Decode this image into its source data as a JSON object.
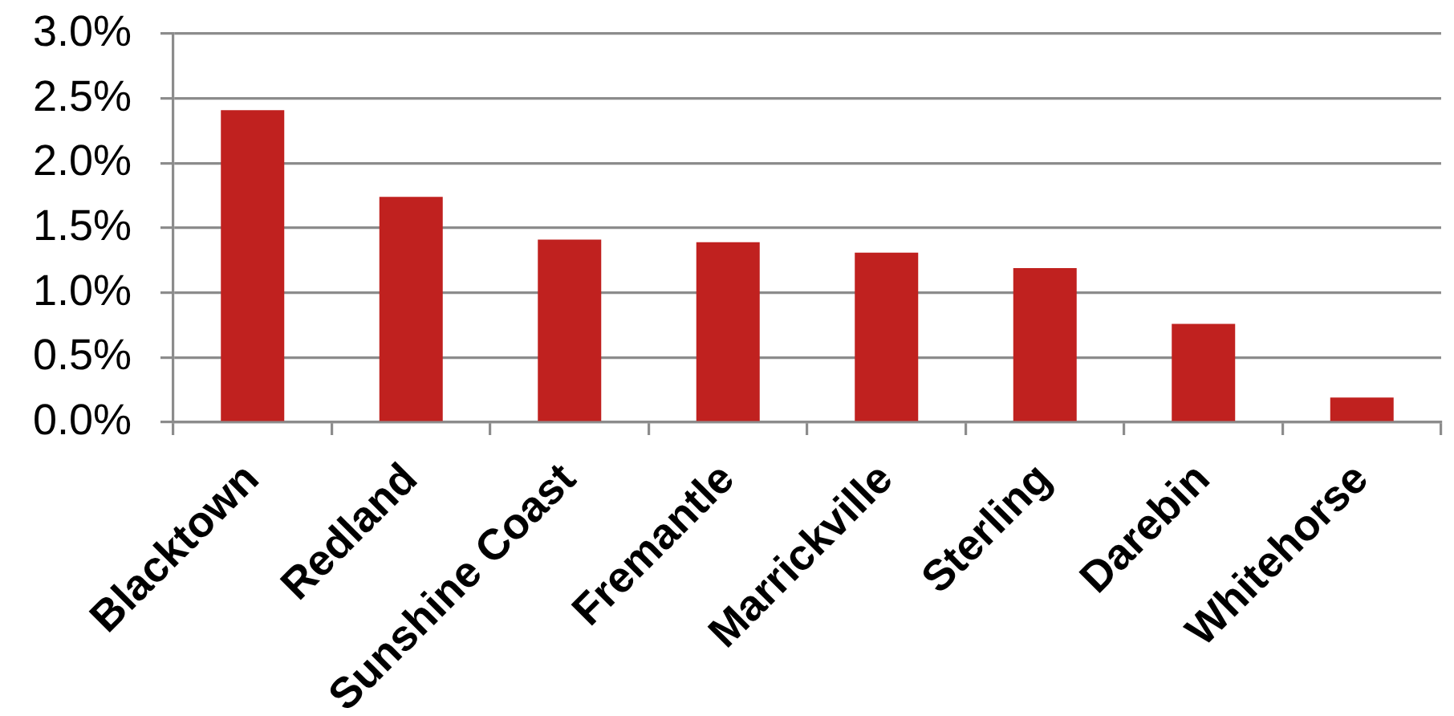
{
  "chart_data": {
    "type": "bar",
    "categories": [
      "Blacktown",
      "Redland",
      "Sunshine Coast",
      "Fremantle",
      "Marrickville",
      "Sterling",
      "Darebin",
      "Whitehorse"
    ],
    "values": [
      2.41,
      1.74,
      1.41,
      1.39,
      1.31,
      1.19,
      0.76,
      0.19
    ],
    "color": "#c0211f",
    "ylim": [
      0,
      3
    ],
    "yticks": [
      {
        "value": 0,
        "label": "0.0%"
      },
      {
        "value": 0.5,
        "label": "0.5%"
      },
      {
        "value": 1,
        "label": "1.0%"
      },
      {
        "value": 1.5,
        "label": "1.5%"
      },
      {
        "value": 2,
        "label": "2.0%"
      },
      {
        "value": 2.5,
        "label": "2.5%"
      },
      {
        "value": 3,
        "label": "3.0%"
      }
    ],
    "grid": "y"
  }
}
